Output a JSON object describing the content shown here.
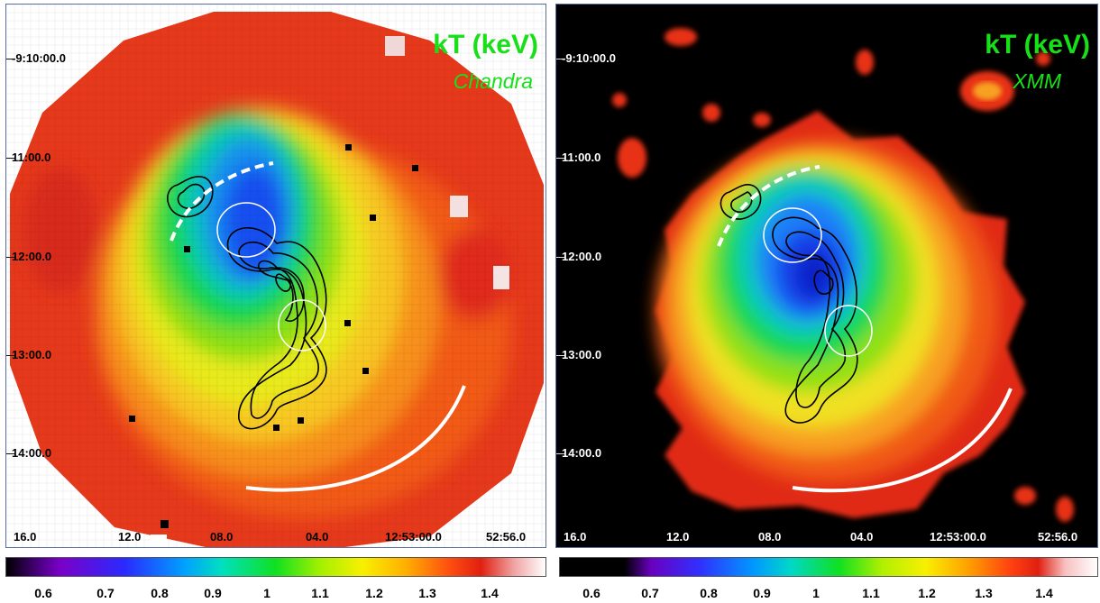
{
  "left_panel": {
    "title": "kT (keV)",
    "subtitle": "Chandra",
    "dec_labels": [
      "-9:10:00.0",
      "11:00.0",
      "12:00.0",
      "13:00.0",
      "14:00.0"
    ],
    "ra_labels": [
      "16.0",
      "12.0",
      "08.0",
      "04.0",
      "12:53:00.0",
      "52:56.0"
    ]
  },
  "right_panel": {
    "title": "kT (keV)",
    "subtitle": "XMM",
    "dec_labels": [
      "-9:10:00.0",
      "11:00.0",
      "12:00.0",
      "13:00.0",
      "14:00.0"
    ],
    "ra_labels": [
      "16.0",
      "12.0",
      "08.0",
      "04.0",
      "12:53:00.0",
      "52:56.0"
    ]
  },
  "colorbar_left": {
    "labels": [
      "0.6",
      "0.7",
      "0.8",
      "0.9",
      "1",
      "1.1",
      "1.2",
      "1.3",
      "1.4"
    ]
  },
  "colorbar_right": {
    "labels": [
      "0.6",
      "0.7",
      "0.8",
      "0.9",
      "1",
      "1.1",
      "1.2",
      "1.3",
      "1.4"
    ]
  },
  "colors": {
    "label_green": "#18e018",
    "contour": "#000000",
    "marker": "#ffffff"
  }
}
